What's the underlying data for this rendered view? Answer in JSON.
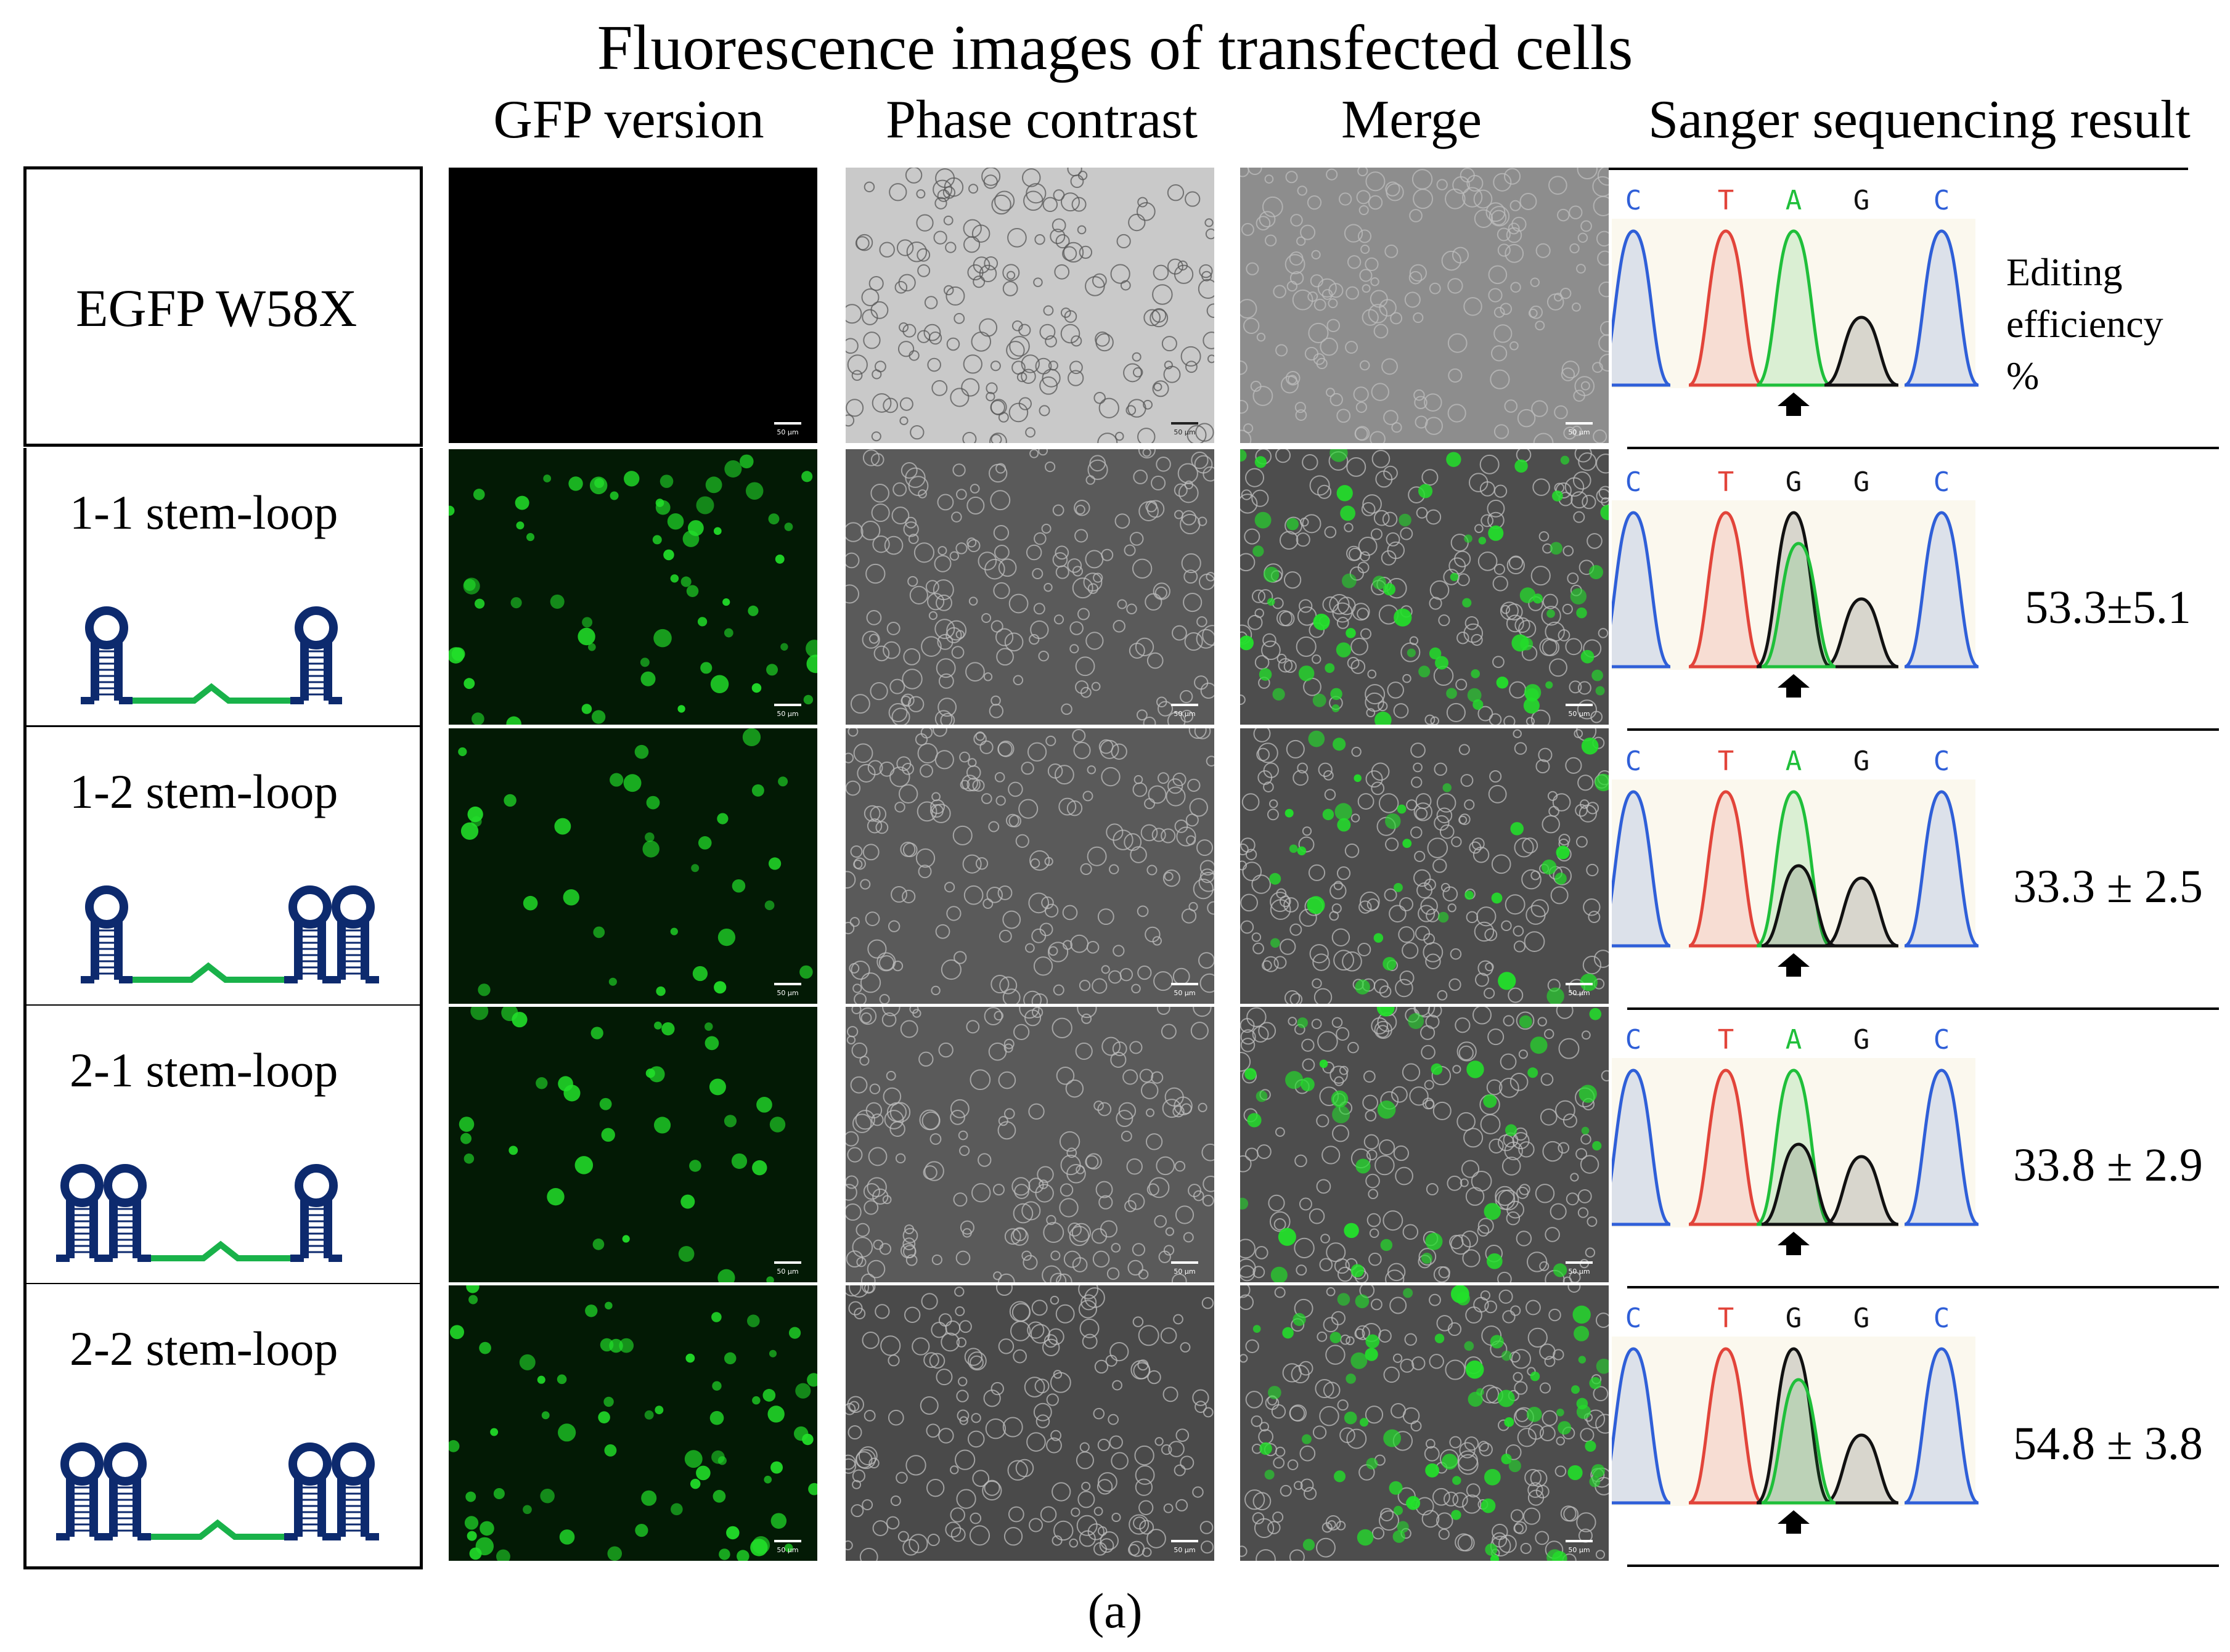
{
  "title": "Fluorescence images of transfected cells",
  "columns": {
    "gfp": "GFP version",
    "phase": "Phase contrast",
    "merge": "Merge",
    "sanger": "Sanger sequencing result"
  },
  "efficiency_header": [
    "Editing",
    "efficiency",
    "%"
  ],
  "scale_bar": "50 μm",
  "rows": [
    {
      "label": "EGFP W58X",
      "bases": [
        "C",
        "T",
        "A",
        "G",
        "C"
      ],
      "efficiency": "",
      "gfp_level": 0,
      "left_loops": 0,
      "right_loops": 0
    },
    {
      "label": "1-1 stem-loop",
      "bases": [
        "C",
        "T",
        "G",
        "G",
        "C"
      ],
      "efficiency": "53.3±5.1",
      "gfp_level": 0.9,
      "left_loops": 1,
      "right_loops": 1
    },
    {
      "label": "1-2 stem-loop",
      "bases": [
        "C",
        "T",
        "A",
        "G",
        "C"
      ],
      "efficiency": "33.3 ± 2.5",
      "gfp_level": 0.45,
      "left_loops": 1,
      "right_loops": 2
    },
    {
      "label": "2-1 stem-loop",
      "bases": [
        "C",
        "T",
        "A",
        "G",
        "C"
      ],
      "efficiency": "33.8 ± 2.9",
      "gfp_level": 0.5,
      "left_loops": 2,
      "right_loops": 1
    },
    {
      "label": "2-2 stem-loop",
      "bases": [
        "C",
        "T",
        "G",
        "G",
        "C"
      ],
      "efficiency": "54.8 ± 3.8",
      "gfp_level": 0.95,
      "left_loops": 2,
      "right_loops": 2
    }
  ],
  "colors": {
    "loop_blue": "#0d2a6e",
    "linker_green": "#19b24a",
    "gfp_green": "#22e02a",
    "trace_C": "#2f5fd8",
    "trace_T": "#e2443a",
    "trace_A": "#1fbf3a",
    "trace_G": "#111111"
  },
  "caption": "(a)"
}
